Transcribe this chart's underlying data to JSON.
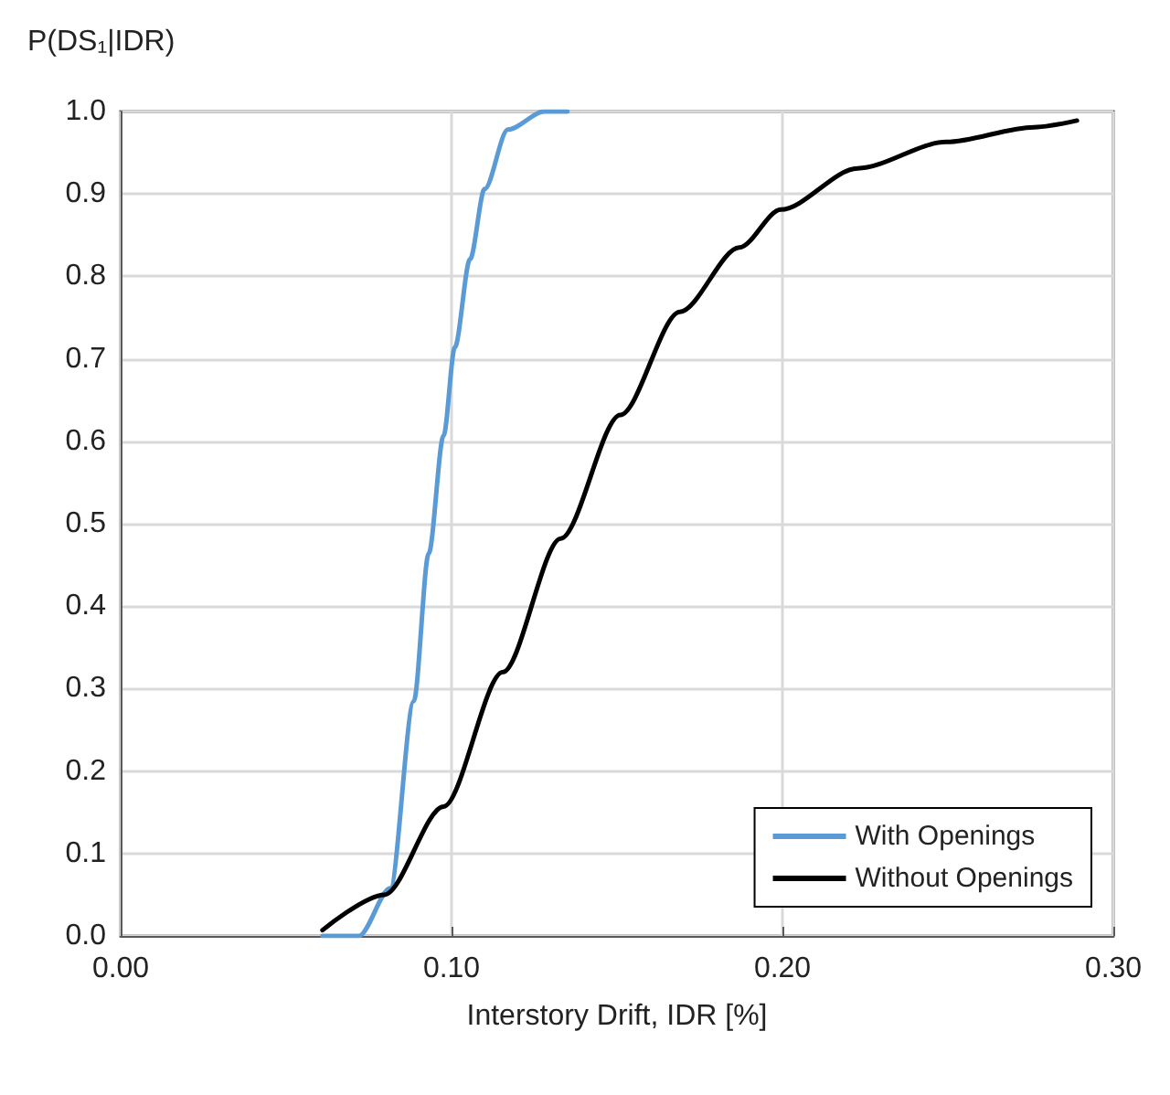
{
  "chart_data": {
    "type": "line",
    "ylabel": "P(DS₁|IDR)",
    "xlabel": "Interstory Drift, IDR [%]",
    "xlim": [
      0,
      0.3
    ],
    "xticks": [
      {
        "value": 0,
        "label": "0.00"
      },
      {
        "value": 0.1,
        "label": "0.10"
      },
      {
        "value": 0.2,
        "label": "0.20"
      },
      {
        "value": 0.3,
        "label": "0.30"
      }
    ],
    "ylim": [
      0,
      1
    ],
    "yticks": [
      {
        "value": 0,
        "label": "0.0"
      },
      {
        "value": 0.1,
        "label": "0.1"
      },
      {
        "value": 0.2,
        "label": "0.2"
      },
      {
        "value": 0.3,
        "label": "0.3"
      },
      {
        "value": 0.4,
        "label": "0.4"
      },
      {
        "value": 0.5,
        "label": "0.5"
      },
      {
        "value": 0.6,
        "label": "0.6"
      },
      {
        "value": 0.7,
        "label": "0.7"
      },
      {
        "value": 0.8,
        "label": "0.8"
      },
      {
        "value": 0.9,
        "label": "0.9"
      },
      {
        "value": 1,
        "label": "1.0"
      }
    ],
    "grid": true,
    "legend": "bottom right",
    "marker": "none",
    "line_style": "solid",
    "series": [
      {
        "name": "With Openings",
        "color": "#5b9bd5",
        "x": [
          0.061,
          0.072,
          0.0815,
          0.0886,
          0.0931,
          0.0976,
          0.101,
          0.1056,
          0.11,
          0.117,
          0.128,
          0.135
        ],
        "values": [
          0,
          0,
          0.058,
          0.285,
          0.464,
          0.607,
          0.714,
          0.821,
          0.906,
          0.978,
          1.0,
          1.0
        ]
      },
      {
        "name": "Without Openings",
        "color": "#000000",
        "x": [
          0.061,
          0.0797,
          0.0976,
          0.1155,
          0.133,
          0.151,
          0.169,
          0.187,
          0.1995,
          0.2227,
          0.2495,
          0.276,
          0.289
        ],
        "values": [
          0.007,
          0.05,
          0.157,
          0.32,
          0.482,
          0.632,
          0.757,
          0.835,
          0.881,
          0.931,
          0.963,
          0.981,
          0.989
        ]
      }
    ]
  }
}
